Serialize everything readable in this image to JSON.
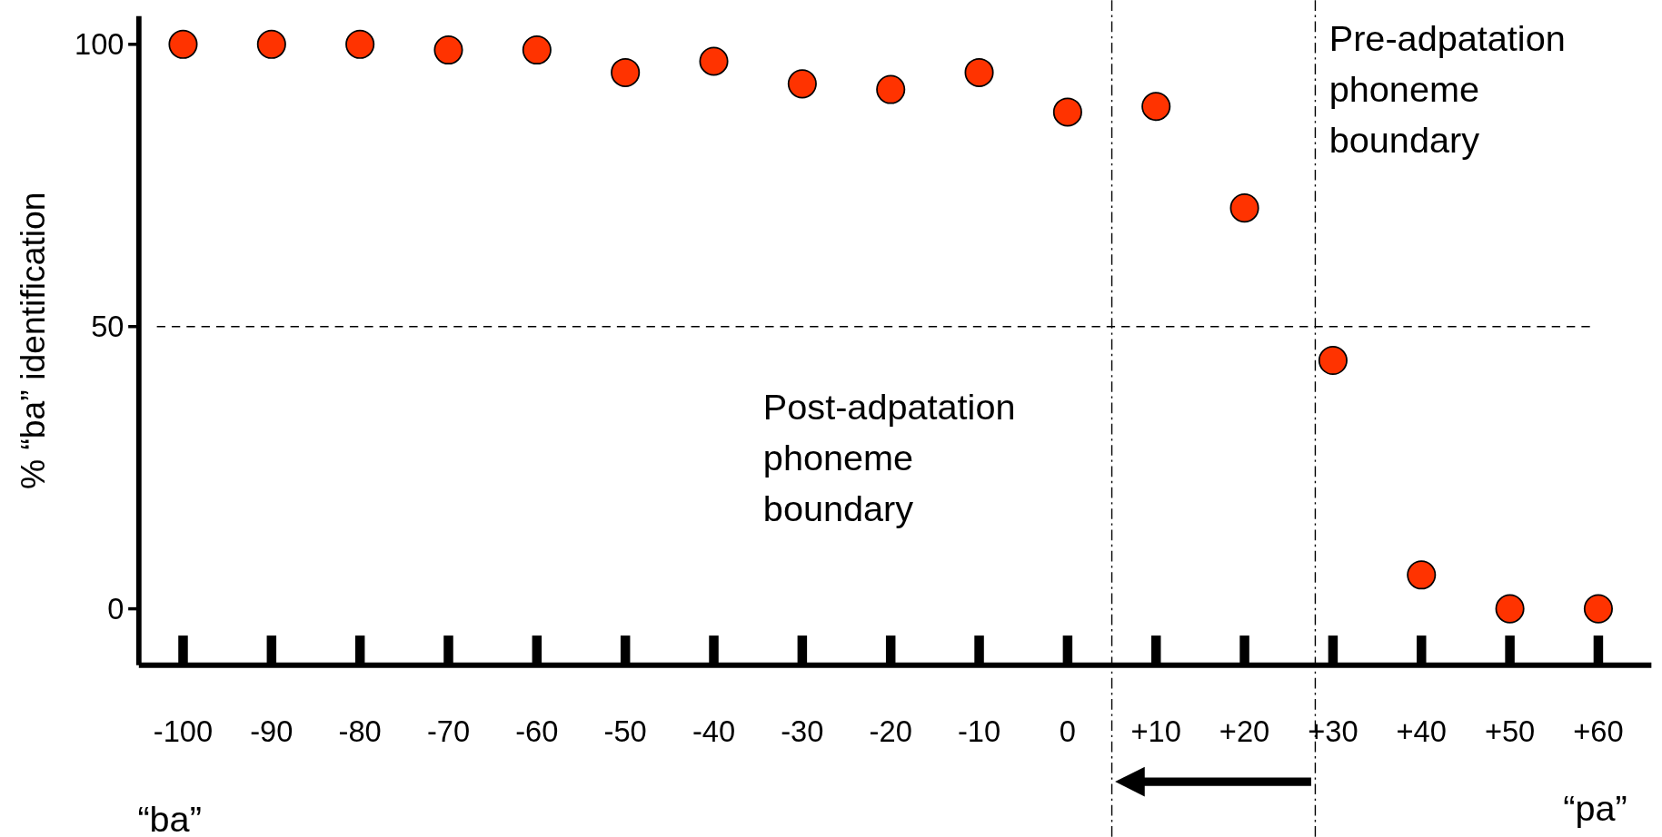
{
  "chart_data": {
    "type": "scatter",
    "ylabel": "% “ba” identification",
    "x": [
      -100,
      -90,
      -80,
      -70,
      -60,
      -50,
      -40,
      -30,
      -20,
      -10,
      0,
      10,
      20,
      30,
      40,
      50,
      60
    ],
    "series": [
      {
        "color": "#ff3300",
        "values": [
          100,
          100,
          100,
          99,
          99,
          95,
          97,
          93,
          92,
          95,
          88,
          89,
          71,
          44,
          6,
          0,
          0
        ]
      }
    ],
    "xlim": [
      -105,
      66
    ],
    "xticks": [
      {
        "value": -100,
        "label": "-100"
      },
      {
        "value": -90,
        "label": "-90"
      },
      {
        "value": -80,
        "label": "-80"
      },
      {
        "value": -70,
        "label": "-70"
      },
      {
        "value": -60,
        "label": "-60"
      },
      {
        "value": -50,
        "label": "-50"
      },
      {
        "value": -40,
        "label": "-40"
      },
      {
        "value": -30,
        "label": "-30"
      },
      {
        "value": -20,
        "label": "-20"
      },
      {
        "value": -10,
        "label": "-10"
      },
      {
        "value": 0,
        "label": "0"
      },
      {
        "value": 10,
        "label": "+10"
      },
      {
        "value": 20,
        "label": "+20"
      },
      {
        "value": 30,
        "label": "+30"
      },
      {
        "value": 40,
        "label": "+40"
      },
      {
        "value": 50,
        "label": "+50"
      },
      {
        "value": 60,
        "label": "+60"
      }
    ],
    "ylim": [
      -10,
      105
    ],
    "yticks": [
      0,
      50,
      100
    ],
    "marker": "circle",
    "grid": false,
    "ref_lines": [
      {
        "axis": "y",
        "value": 50,
        "line_style": "dashed"
      },
      {
        "axis": "x",
        "value": 5,
        "line_style": "dashdot"
      },
      {
        "axis": "x",
        "value": 28,
        "line_style": "dashdot"
      }
    ],
    "annotations": [
      "Pre-adpatation\nphoneme\nboundary",
      "Post-adpatation\nphoneme\nboundary",
      "“ba”",
      "“pa”"
    ]
  }
}
